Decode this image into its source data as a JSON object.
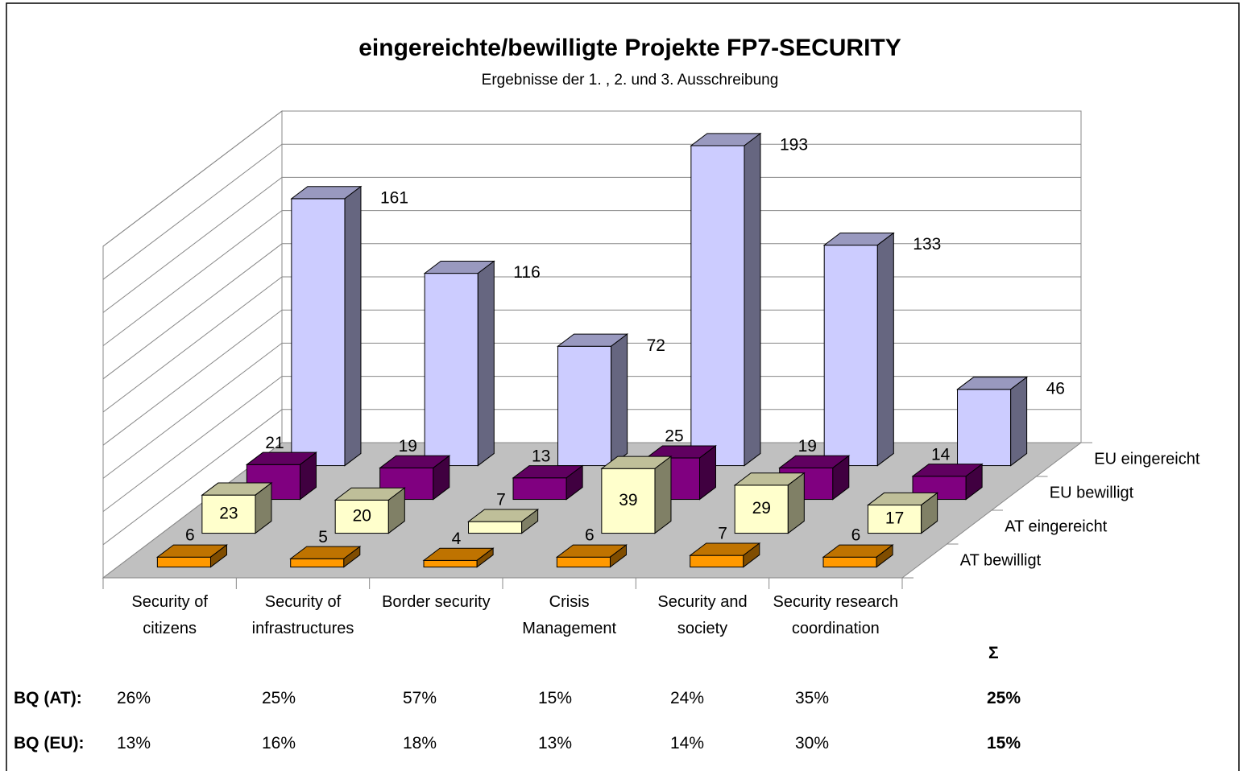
{
  "chart_data": {
    "type": "bar3d",
    "title": "eingereichte/bewilligte Projekte FP7-SECURITY",
    "subtitle": "Ergebnisse der 1. , 2. und 3. Ausschreibung",
    "categories": [
      "Security of citizens",
      "Security of infrastructures",
      "Border security",
      "Crisis Management",
      "Security and society",
      "Security research coordination"
    ],
    "series": [
      {
        "name": "EU eingereicht",
        "color": "#ccccff",
        "values": [
          161,
          116,
          72,
          193,
          133,
          46
        ]
      },
      {
        "name": "EU bewilligt",
        "color": "#800080",
        "values": [
          21,
          19,
          13,
          25,
          19,
          14
        ]
      },
      {
        "name": "AT eingereicht",
        "color": "#ffffcc",
        "values": [
          23,
          20,
          7,
          39,
          29,
          17
        ]
      },
      {
        "name": "AT bewilligt",
        "color": "#ff9900",
        "values": [
          6,
          5,
          4,
          6,
          7,
          6
        ]
      }
    ],
    "ylim": [
      0,
      200
    ],
    "yticks": [
      0,
      20,
      40,
      60,
      80,
      100,
      120,
      140,
      160,
      180,
      200
    ],
    "grid": true
  },
  "table": {
    "sum_header": "Σ",
    "rows": [
      {
        "label": "BQ (AT):",
        "cells": [
          "26%",
          "25%",
          "57%",
          "15%",
          "24%",
          "35%"
        ],
        "total": "25%"
      },
      {
        "label": "BQ (EU):",
        "cells": [
          "13%",
          "16%",
          "18%",
          "13%",
          "14%",
          "30%"
        ],
        "total": "15%"
      }
    ]
  }
}
